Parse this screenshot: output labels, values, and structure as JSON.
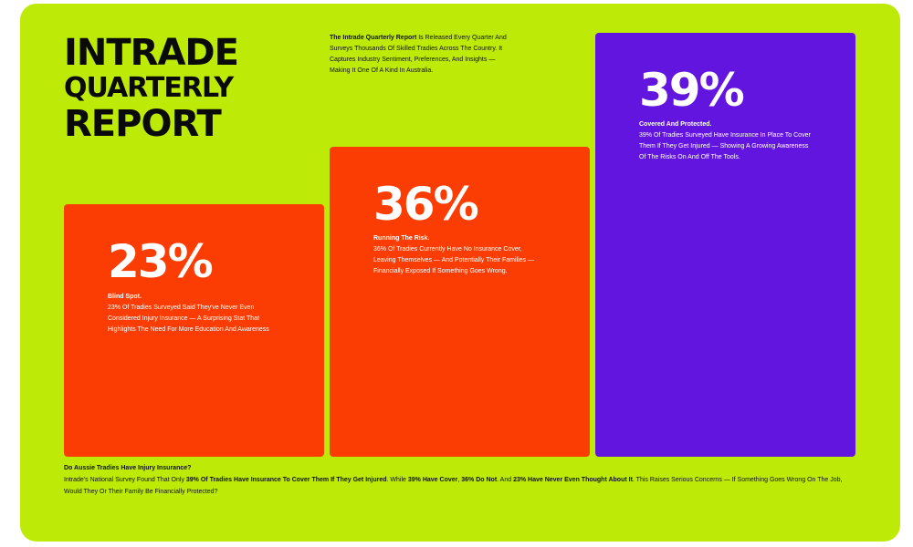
{
  "title": {
    "line1": "INTRADE",
    "line2": "QUARTERLY",
    "line3": "REPORT"
  },
  "intro": {
    "bold": "The Intrade Quarterly Report",
    "text": " Is Released Every Quarter And Surveys Thousands Of Skilled Tradies Across The Country. It Captures Industry Sentiment, Preferences, And Insights — Making It One Of A Kind In Australia."
  },
  "cards": [
    {
      "percent": "23%",
      "heading": "Blind Spot.",
      "body": "23% Of Tradies Surveyed Said They've Never Even Considered Injury Insurance — A Surprising Stat That Highlights The Need For More Education And Awareness",
      "color": "#fb3d03"
    },
    {
      "percent": "36%",
      "heading": "Running The Risk.",
      "body": "36% Of Tradies Currently Have No Insurance Cover, Leaving Themselves — And Potentially Their Families — Financially Exposed If Something Goes Wrong.",
      "color": "#fb3d03"
    },
    {
      "percent": "39%",
      "heading": "Covered And Protected.",
      "body": "39% Of Tradies Surveyed Have Insurance In Place To Cover Them If They Get Injured — Showing A Growing Awareness Of The Risks On And Off The Tools.",
      "color": "#6315e0"
    }
  ],
  "footer": {
    "question": "Do Aussie Tradies Have Injury Insurance?",
    "t1": "Intrade's National Survey Found That Only ",
    "b1": "39% Of Tradies Have Insurance To Cover Them If They Get Injured",
    "t2": ". While ",
    "b2": "39% Have Cover",
    "t3": ", ",
    "b3": "36% Do Not",
    "t4": ". And ",
    "b4": "23% Have Never Even Thought About It",
    "t5": ". This Raises Serious Concerns — If Something Goes Wrong On The Job, Would They Or Their Family Be Financially Protected?"
  },
  "colors": {
    "background": "#bdea06",
    "orange": "#fb3d03",
    "purple": "#6315e0"
  }
}
